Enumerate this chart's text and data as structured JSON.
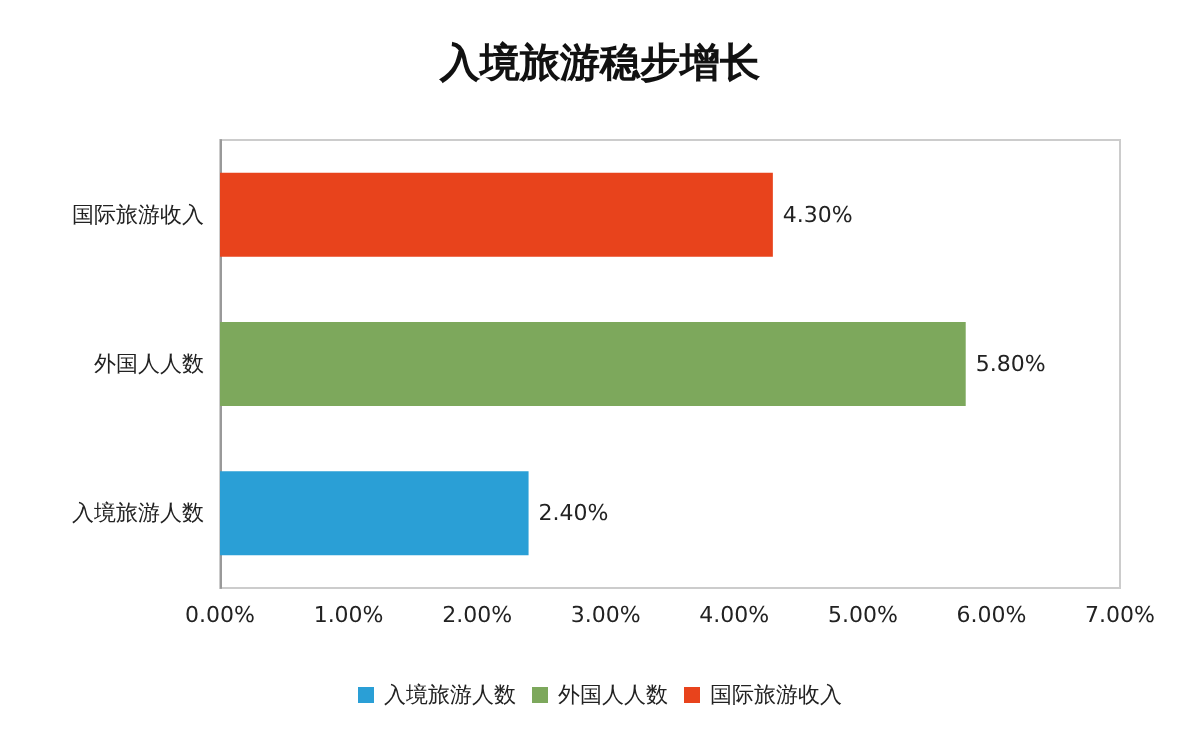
{
  "chart_data": {
    "type": "bar",
    "title": "入境旅游稳步增长",
    "orientation": "horizontal",
    "stacked": true,
    "categories": [
      "国际旅游收入",
      "外国人人数",
      "入境旅游人数"
    ],
    "series": [
      {
        "name": "入境旅游人数",
        "color": "#2a9fd6",
        "values": [
          null,
          null,
          2.4
        ],
        "value_labels": [
          null,
          null,
          "2.40%"
        ]
      },
      {
        "name": "外国人人数",
        "color": "#7da85c",
        "values": [
          null,
          5.8,
          null
        ],
        "value_labels": [
          null,
          "5.80%",
          null
        ]
      },
      {
        "name": "国际旅游收入",
        "color": "#e8431c",
        "values": [
          4.3,
          null,
          null
        ],
        "value_labels": [
          "4.30%",
          null,
          null
        ]
      }
    ],
    "xlim": [
      0,
      7
    ],
    "xticks": [
      {
        "value": 0,
        "label": "0.00%"
      },
      {
        "value": 1,
        "label": "1.00%"
      },
      {
        "value": 2,
        "label": "2.00%"
      },
      {
        "value": 3,
        "label": "3.00%"
      },
      {
        "value": 4,
        "label": "4.00%"
      },
      {
        "value": 5,
        "label": "5.00%"
      },
      {
        "value": 6,
        "label": "6.00%"
      },
      {
        "value": 7,
        "label": "7.00%"
      }
    ],
    "grid": false,
    "legend": "bottom"
  }
}
